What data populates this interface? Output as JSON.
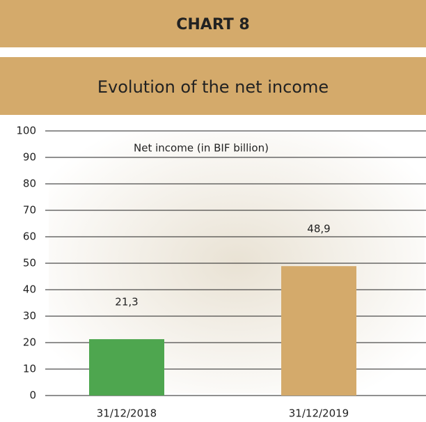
{
  "chart_data": {
    "type": "bar",
    "title": "CHART 8",
    "subtitle": "Evolution of the net income",
    "categories": [
      "31/12/2018",
      "31/12/2019"
    ],
    "series": [
      {
        "name": "Net income (in BIF billion)",
        "colors": [
          "#4ea64f",
          "#d4aa6b"
        ],
        "values": [
          21.3,
          48.9
        ],
        "value_labels": [
          "21,3",
          "48,9"
        ]
      }
    ],
    "ylim": [
      0,
      100
    ],
    "yticks": [
      0,
      10,
      20,
      30,
      40,
      50,
      60,
      70,
      80,
      90,
      100
    ],
    "grid": true
  }
}
